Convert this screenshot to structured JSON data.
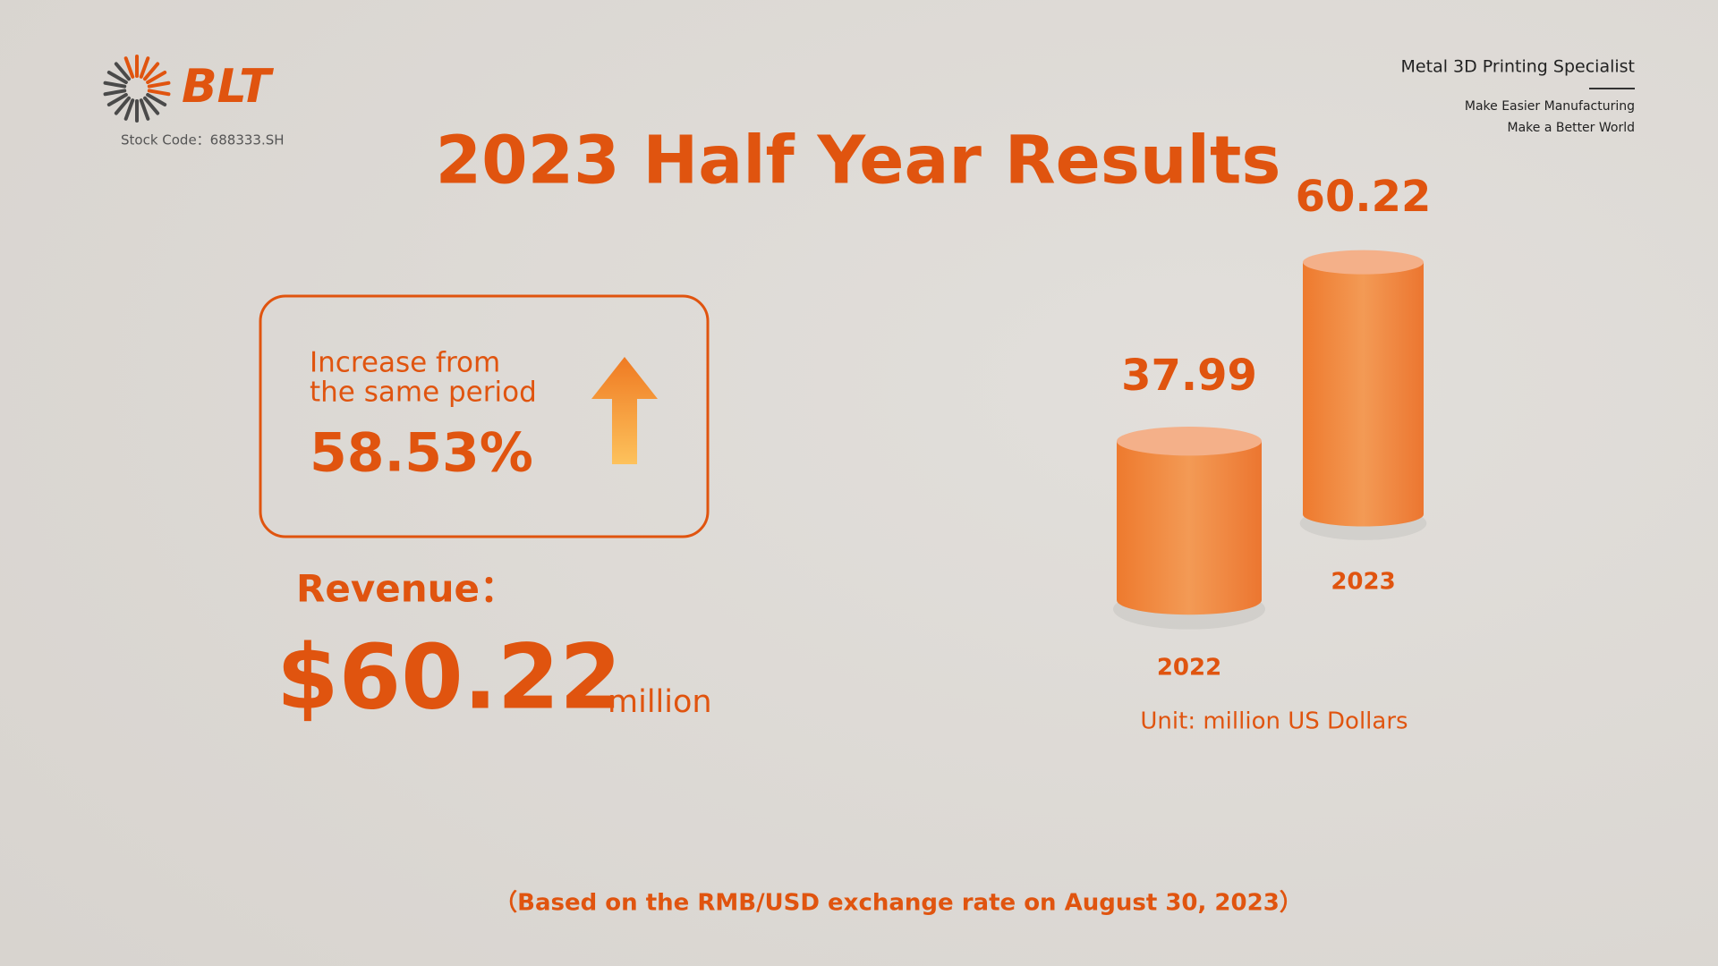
{
  "logo": {
    "text": "BLT",
    "stock_code": "Stock Code：688333.SH"
  },
  "tagline": {
    "title": "Metal 3D Printing Specialist",
    "lines": [
      "Make Easier Manufacturing",
      "Make a Better World"
    ]
  },
  "title": "2023 Half Year Results",
  "increase": {
    "label_lines": [
      "Increase from",
      "the same period"
    ],
    "value": "58.53%"
  },
  "revenue": {
    "label": "Revenue：",
    "value": "$60.22",
    "unit": "million"
  },
  "chart_data": {
    "type": "bar",
    "categories": [
      "2022",
      "2023"
    ],
    "values": [
      37.99,
      60.22
    ],
    "color": "#f0843a",
    "unit_note": "Unit: million US Dollars"
  },
  "footnote": "（Based on the RMB/USD exchange rate on August 30, 2023）"
}
